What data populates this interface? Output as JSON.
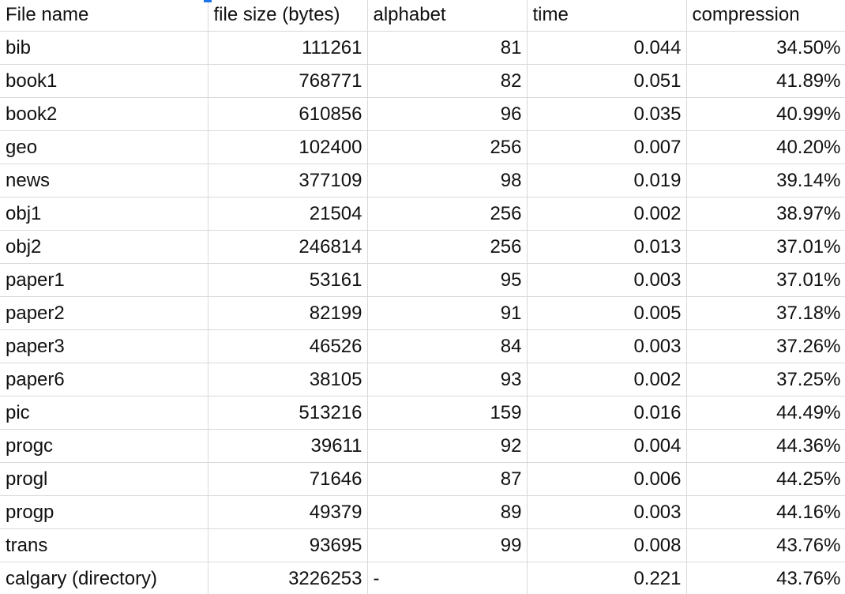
{
  "sheet": {
    "columns": [
      "File name",
      "file size (bytes)",
      "alphabet",
      "time",
      "compression"
    ],
    "rows": [
      [
        "bib",
        "111261",
        "81",
        "0.044",
        "34.50%"
      ],
      [
        "book1",
        "768771",
        "82",
        "0.051",
        "41.89%"
      ],
      [
        "book2",
        "610856",
        "96",
        "0.035",
        "40.99%"
      ],
      [
        "geo",
        "102400",
        "256",
        "0.007",
        "40.20%"
      ],
      [
        "news",
        "377109",
        "98",
        "0.019",
        "39.14%"
      ],
      [
        "obj1",
        "21504",
        "256",
        "0.002",
        "38.97%"
      ],
      [
        "obj2",
        "246814",
        "256",
        "0.013",
        "37.01%"
      ],
      [
        "paper1",
        "53161",
        "95",
        "0.003",
        "37.01%"
      ],
      [
        "paper2",
        "82199",
        "91",
        "0.005",
        "37.18%"
      ],
      [
        "paper3",
        "46526",
        "84",
        "0.003",
        "37.26%"
      ],
      [
        "paper6",
        "38105",
        "93",
        "0.002",
        "37.25%"
      ],
      [
        "pic",
        "513216",
        "159",
        "0.016",
        "44.49%"
      ],
      [
        "progc",
        "39611",
        "92",
        "0.004",
        "44.36%"
      ],
      [
        "progl",
        "71646",
        "87",
        "0.006",
        "44.25%"
      ],
      [
        "progp",
        "49379",
        "89",
        "0.003",
        "44.16%"
      ],
      [
        "trans",
        "93695",
        "99",
        "0.008",
        "43.76%"
      ],
      [
        "calgary (directory)",
        "3226253",
        "-",
        "0.221",
        "43.76%"
      ]
    ]
  },
  "colors": {
    "grid_line": "#d9d9d9",
    "text": "#111111",
    "selection_accent": "#1a73e8"
  }
}
